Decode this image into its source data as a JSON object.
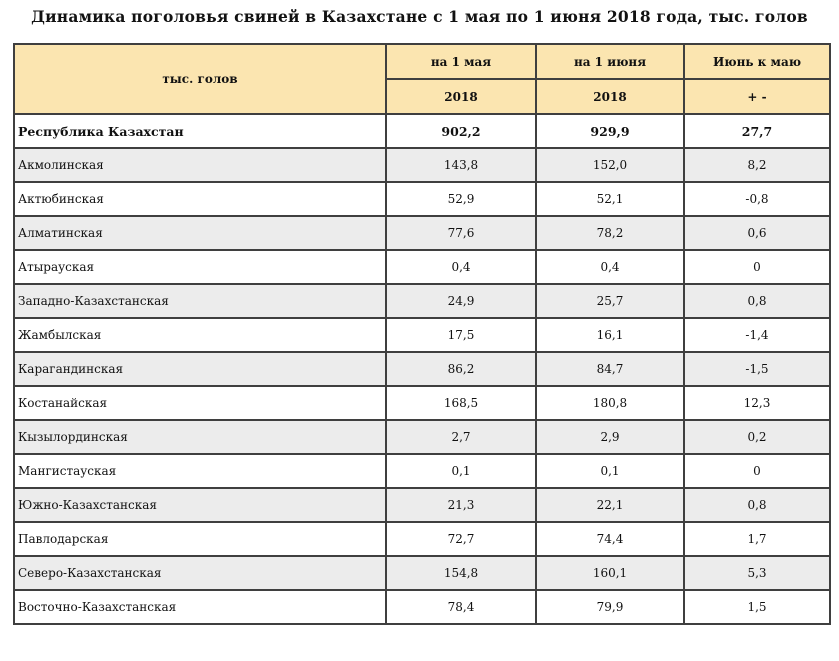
{
  "page": {
    "title": "Динамика поголовья свиней в Казахстане с 1 мая по 1 июня 2018 года, тыс. голов"
  },
  "colors": {
    "header_bg": "#fbe5b0",
    "alt_row_bg": "#ececec",
    "border": "#3f3f3f"
  },
  "table": {
    "header": {
      "col1": "тыс. голов",
      "col2_top": "на 1 мая",
      "col2_bottom": "2018",
      "col3_top": "на 1 июня",
      "col3_bottom": "2018",
      "col4_top": "Июнь к маю",
      "col4_bottom": "+ -"
    },
    "rows": [
      {
        "region": "Республика Казахстан",
        "may": "902,2",
        "june": "929,9",
        "diff": "27,7",
        "is_total": true
      },
      {
        "region": "Акмолинская",
        "may": "143,8",
        "june": "152,0",
        "diff": "8,2"
      },
      {
        "region": "Актюбинская",
        "may": "52,9",
        "june": "52,1",
        "diff": "-0,8"
      },
      {
        "region": "Алматинская",
        "may": "77,6",
        "june": "78,2",
        "diff": "0,6"
      },
      {
        "region": "Атырауская",
        "may": "0,4",
        "june": "0,4",
        "diff": "0"
      },
      {
        "region": "Западно-Казахстанская",
        "may": "24,9",
        "june": "25,7",
        "diff": "0,8"
      },
      {
        "region": "Жамбылская",
        "may": "17,5",
        "june": "16,1",
        "diff": "-1,4"
      },
      {
        "region": "Карагандинская",
        "may": "86,2",
        "june": "84,7",
        "diff": "-1,5"
      },
      {
        "region": "Костанайская",
        "may": "168,5",
        "june": "180,8",
        "diff": "12,3"
      },
      {
        "region": "Кызылординская",
        "may": "2,7",
        "june": "2,9",
        "diff": "0,2"
      },
      {
        "region": "Мангистауская",
        "may": "0,1",
        "june": "0,1",
        "diff": "0"
      },
      {
        "region": "Южно-Казахстанская",
        "may": "21,3",
        "june": "22,1",
        "diff": "0,8"
      },
      {
        "region": "Павлодарская",
        "may": "72,7",
        "june": "74,4",
        "diff": "1,7"
      },
      {
        "region": "Северо-Казахстанская",
        "may": "154,8",
        "june": "160,1",
        "diff": "5,3"
      },
      {
        "region": "Восточно-Казахстанская",
        "may": "78,4",
        "june": "79,9",
        "diff": "1,5"
      }
    ]
  }
}
